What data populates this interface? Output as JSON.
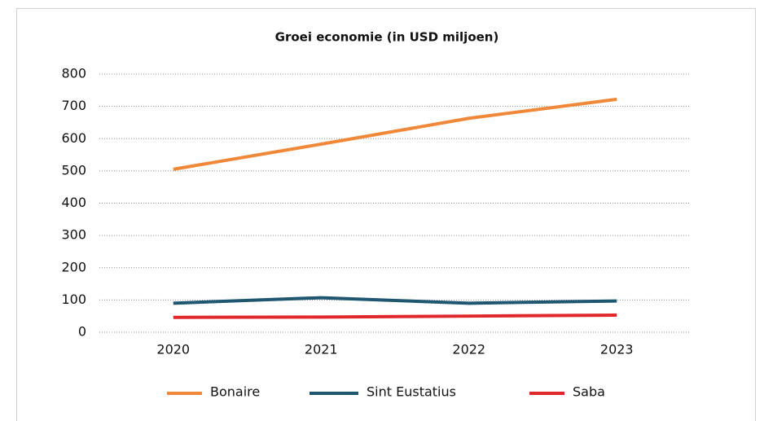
{
  "chart_data": {
    "type": "line",
    "title": "Groei economie (in USD miljoen)",
    "categories": [
      "2020",
      "2021",
      "2022",
      "2023"
    ],
    "series": [
      {
        "name": "Bonaire",
        "color": "#f0883a",
        "values": [
          505,
          583,
          663,
          722
        ]
      },
      {
        "name": "Sint Eustatius",
        "color": "#1f5670",
        "values": [
          90,
          107,
          90,
          97
        ]
      },
      {
        "name": "Saba",
        "color": "#e0282c",
        "values": [
          46,
          47,
          50,
          53
        ]
      }
    ],
    "ylim": [
      0,
      800
    ],
    "yticks": [
      0,
      100,
      200,
      300,
      400,
      500,
      600,
      700,
      800
    ],
    "grid": true,
    "legend": "bottom"
  }
}
